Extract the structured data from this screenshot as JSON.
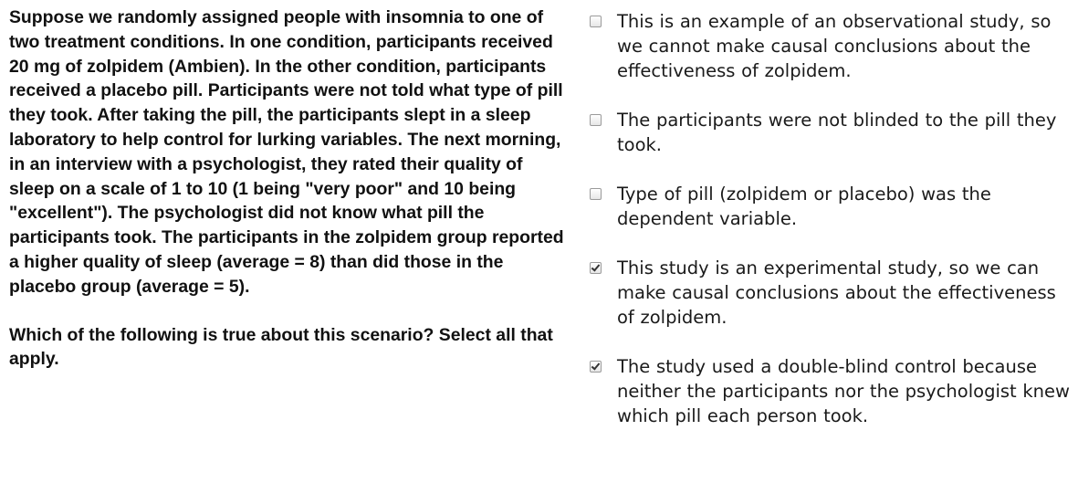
{
  "question": {
    "scenario": "Suppose we randomly assigned people with insomnia to one of two treatment conditions. In one condition, participants received 20 mg of zolpidem (Ambien). In the other condition, participants received a placebo pill. Participants were not told what type of pill they took. After taking the pill, the participants slept in a sleep laboratory to help control for lurking variables. The next morning, in an interview with a psychologist, they rated their quality of sleep on a scale of 1 to 10 (1 being \"very poor\" and 10 being \"excellent\"). The psychologist did not know what pill the participants took. The participants in the zolpidem group reported a higher quality of sleep (average = 8) than did those in the placebo group (average = 5).",
    "prompt": "Which of the following is true about this scenario? Select all that apply."
  },
  "options": [
    {
      "label": "This is an example of an observational study, so we cannot make causal conclusions about the effectiveness of zolpidem.",
      "checked": false
    },
    {
      "label": "The participants were not blinded to the pill they took.",
      "checked": false
    },
    {
      "label": "Type of pill (zolpidem or placebo) was the dependent variable.",
      "checked": false
    },
    {
      "label": "This study is an experimental study, so we can make causal conclusions about the effectiveness of zolpidem.",
      "checked": true
    },
    {
      "label": "The study used a double-blind control because neither the participants nor the psychologist knew which pill each person took.",
      "checked": true
    }
  ]
}
